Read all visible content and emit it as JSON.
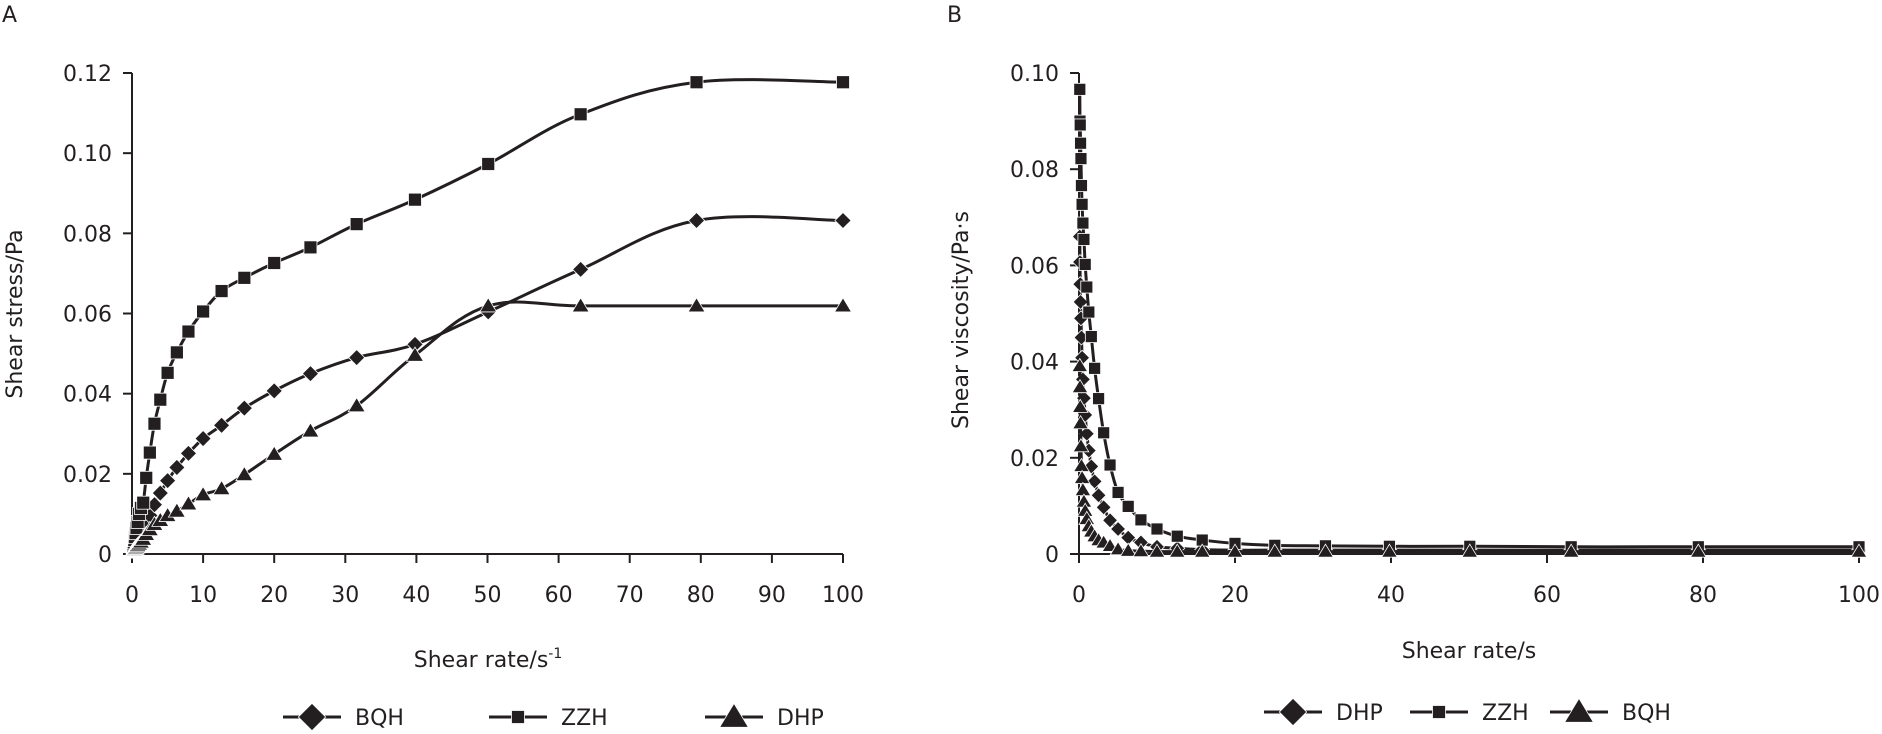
{
  "chart_data": [
    {
      "panel": "A",
      "type": "line",
      "title": "",
      "xlabel": "Shear rate/s",
      "xlabel_superscript": "-1",
      "ylabel": "Shear stress/Pa",
      "xlim": [
        0,
        100
      ],
      "ylim": [
        0,
        0.12
      ],
      "xticks": [
        0,
        10,
        20,
        30,
        40,
        50,
        60,
        70,
        80,
        90,
        100
      ],
      "xtick_labels": [
        "0",
        "10",
        "20",
        "30",
        "40",
        "50",
        "60",
        "70",
        "80",
        "90",
        "100"
      ],
      "yticks": [
        0,
        0.02,
        0.04,
        0.06,
        0.08,
        0.1,
        0.12
      ],
      "ytick_labels": [
        "0",
        "0.02",
        "0.04",
        "0.06",
        "0.08",
        "0.10",
        "0.12"
      ],
      "grid": false,
      "legend_position": "bottom",
      "x": [
        0.1,
        0.126,
        0.158,
        0.2,
        0.251,
        0.316,
        0.398,
        0.501,
        0.631,
        0.794,
        1,
        1.26,
        1.58,
        2,
        2.51,
        3.16,
        3.98,
        5.01,
        6.31,
        7.94,
        10,
        12.6,
        15.8,
        20,
        25.1,
        31.6,
        39.8,
        50.1,
        63.1,
        79.4,
        100
      ],
      "series": [
        {
          "name": "BQH",
          "marker": "diamond",
          "values": [
            0.0012,
            0.0013,
            0.0015,
            0.0017,
            0.0019,
            0.0022,
            0.0026,
            0.003,
            0.0036,
            0.0042,
            0.0048,
            0.0053,
            0.006,
            0.007,
            0.0096,
            0.0123,
            0.0152,
            0.0183,
            0.0216,
            0.0251,
            0.0288,
            0.0321,
            0.0364,
            0.0407,
            0.045,
            0.049,
            0.0523,
            0.0604,
            0.071,
            0.0832,
            0.0832
          ]
        },
        {
          "name": "ZZH",
          "marker": "square",
          "values": [
            0.0015,
            0.0017,
            0.002,
            0.0024,
            0.0029,
            0.0035,
            0.0042,
            0.0052,
            0.0065,
            0.008,
            0.01,
            0.0115,
            0.0128,
            0.019,
            0.0253,
            0.0325,
            0.0385,
            0.0452,
            0.0503,
            0.0555,
            0.0605,
            0.0656,
            0.0689,
            0.0726,
            0.0765,
            0.0823,
            0.0884,
            0.0973,
            0.1097,
            0.1177,
            0.1177
          ]
        },
        {
          "name": "DHP",
          "marker": "triangle",
          "values": [
            0.0005,
            0.0006,
            0.0007,
            0.0008,
            0.0009,
            0.0011,
            0.0013,
            0.0015,
            0.0018,
            0.0021,
            0.0025,
            0.003,
            0.0037,
            0.0049,
            0.0061,
            0.0074,
            0.0084,
            0.0096,
            0.0107,
            0.0125,
            0.0148,
            0.0163,
            0.0198,
            0.0249,
            0.0307,
            0.037,
            0.0496,
            0.0619,
            0.0619,
            0.0619,
            0.0619
          ]
        }
      ]
    },
    {
      "panel": "B",
      "type": "line",
      "title": "",
      "xlabel": "Shear rate/s",
      "ylabel": "Shear viscosity/Pa·s",
      "xlim": [
        0,
        100
      ],
      "ylim": [
        0,
        0.1
      ],
      "xticks": [
        0,
        20,
        40,
        60,
        80,
        100
      ],
      "xtick_labels": [
        "0",
        "20",
        "40",
        "60",
        "80",
        "100"
      ],
      "yticks": [
        0,
        0.02,
        0.04,
        0.06,
        0.08,
        0.1
      ],
      "ytick_labels": [
        "0",
        "0.02",
        "0.04",
        "0.06",
        "0.08",
        "0.10"
      ],
      "grid": false,
      "legend_position": "bottom",
      "x": [
        0.1,
        0.126,
        0.158,
        0.2,
        0.251,
        0.316,
        0.398,
        0.501,
        0.631,
        0.794,
        1,
        1.26,
        1.58,
        2,
        2.51,
        3.16,
        3.98,
        5.01,
        6.31,
        7.94,
        10,
        12.6,
        15.8,
        20,
        25.1,
        31.6,
        39.8,
        50.1,
        63.1,
        79.4,
        100
      ],
      "series": [
        {
          "name": "DHP",
          "marker": "diamond",
          "values": [
            0.066,
            0.0607,
            0.0561,
            0.0524,
            0.049,
            0.045,
            0.0408,
            0.0363,
            0.0324,
            0.0289,
            0.025,
            0.0215,
            0.0182,
            0.0151,
            0.0122,
            0.0097,
            0.007,
            0.0052,
            0.0034,
            0.0024,
            0.0015,
            0.0012,
            0.0009,
            0.0008,
            0.0008,
            0.0008,
            0.0008,
            0.0008,
            0.0008,
            0.0008,
            0.0008
          ]
        },
        {
          "name": "ZZH",
          "marker": "square",
          "values": [
            0.0966,
            0.09,
            0.0892,
            0.0854,
            0.0822,
            0.0766,
            0.0727,
            0.0688,
            0.0654,
            0.0602,
            0.0555,
            0.0503,
            0.0452,
            0.0386,
            0.0323,
            0.0252,
            0.0185,
            0.0128,
            0.0099,
            0.0071,
            0.0052,
            0.0037,
            0.0029,
            0.0022,
            0.0018,
            0.0017,
            0.0016,
            0.0016,
            0.0015,
            0.0015,
            0.0015
          ]
        },
        {
          "name": "BQH",
          "marker": "triangle",
          "values": [
            0.0391,
            0.0347,
            0.0306,
            0.0272,
            0.0224,
            0.0183,
            0.0158,
            0.0133,
            0.0109,
            0.009,
            0.0073,
            0.0058,
            0.0047,
            0.0037,
            0.0029,
            0.0024,
            0.0017,
            0.001,
            0.0007,
            0.0006,
            0.0005,
            0.0005,
            0.0005,
            0.0005,
            0.0005,
            0.0005,
            0.0005,
            0.0005,
            0.0005,
            0.0005,
            0.0005
          ]
        }
      ]
    }
  ],
  "colors": {
    "ink": "#231f20",
    "background": "#ffffff"
  }
}
